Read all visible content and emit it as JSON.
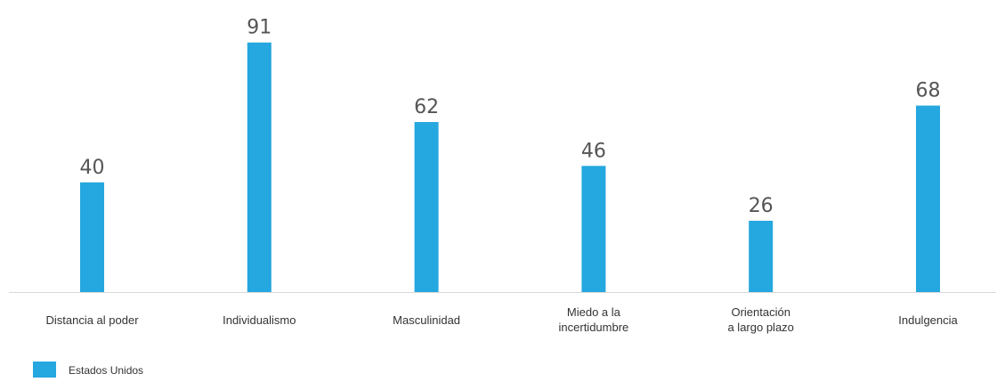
{
  "colors": {
    "bar": "#25a7df",
    "baseline": "#d9d9d9",
    "value_text": "#555555",
    "label_text": "#333333"
  },
  "chart_data": {
    "type": "bar",
    "categories": [
      [
        "Distancia al poder"
      ],
      [
        "Individualismo"
      ],
      [
        "Masculinidad"
      ],
      [
        "Miedo a la",
        "incertidumbre"
      ],
      [
        "Orientación",
        "a largo plazo"
      ],
      [
        "Indulgencia"
      ]
    ],
    "series": [
      {
        "name": "Estados Unidos",
        "values": [
          40,
          91,
          62,
          46,
          26,
          68
        ]
      }
    ],
    "ylim": [
      0,
      100
    ],
    "grid": false,
    "legend_position": "bottom-left",
    "show_value_labels": true
  }
}
